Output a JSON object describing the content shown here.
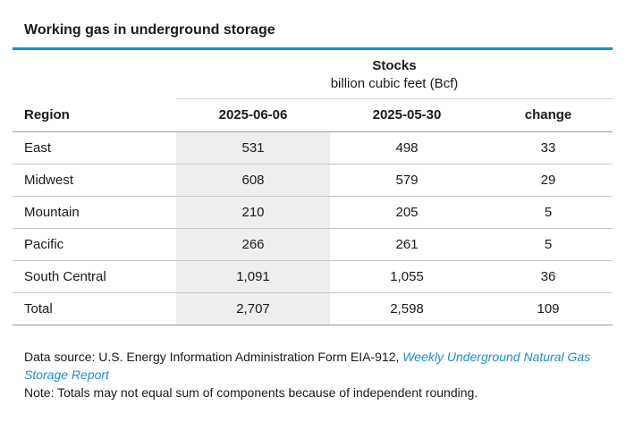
{
  "title": "Working gas in underground storage",
  "group_header": {
    "label": "Stocks",
    "unit": "billion cubic feet (Bcf)"
  },
  "columns": [
    "Region",
    "2025-06-06",
    "2025-05-30",
    "change"
  ],
  "rows": [
    [
      "East",
      "531",
      "498",
      "33"
    ],
    [
      "Midwest",
      "608",
      "579",
      "29"
    ],
    [
      "Mountain",
      "210",
      "205",
      "5"
    ],
    [
      "Pacific",
      "266",
      "261",
      "5"
    ],
    [
      "South Central",
      "1,091",
      "1,055",
      "36"
    ],
    [
      "Total",
      "2,707",
      "2,598",
      "109"
    ]
  ],
  "footer": {
    "source_prefix": "Data source: U.S. Energy Information Administration Form EIA-912,",
    "source_link": "Weekly Underground Natural Gas Storage Report",
    "note": "Note: Totals may not equal sum of components because of independent rounding."
  },
  "colors": {
    "accent": "#1c8fce",
    "highlight_column": "#eeeeee"
  }
}
